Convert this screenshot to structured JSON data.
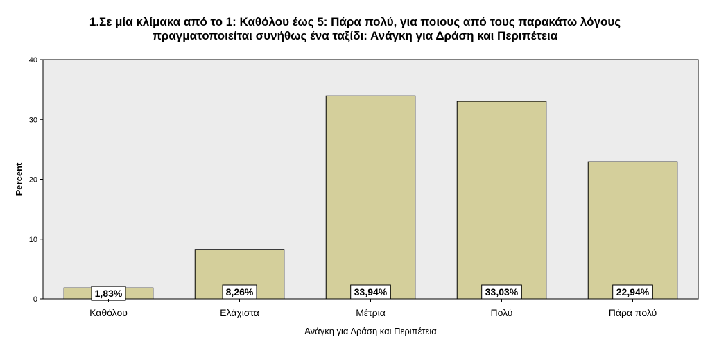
{
  "chart_data": {
    "type": "bar",
    "title_lines": [
      "1.Σε μία κλίμακα από το 1: Καθόλου έως 5: Πάρα πολύ, για ποιους από τους παρακάτω λόγους",
      "πραγματοποιείται συνήθως ένα ταξίδι: Ανάγκη για Δράση και Περιπέτεια"
    ],
    "categories": [
      "Καθόλου",
      "Ελάχιστα",
      "Μέτρια",
      "Πολύ",
      "Πάρα πολύ"
    ],
    "values": [
      1.83,
      8.26,
      33.94,
      33.03,
      22.94
    ],
    "data_labels": [
      "1,83%",
      "8,26%",
      "33,94%",
      "33,03%",
      "22,94%"
    ],
    "xlabel": "Ανάγκη για Δράση και Περιπέτεια",
    "ylabel": "Percent",
    "ylim": [
      0,
      40
    ],
    "yticks": [
      0,
      10,
      20,
      30,
      40
    ],
    "grid": false,
    "legend": "none",
    "colors": {
      "plot_background": "#ececec",
      "bar_fill": "#d4cf9b",
      "bar_stroke": "#000000",
      "label_box": "#ffffff"
    }
  }
}
